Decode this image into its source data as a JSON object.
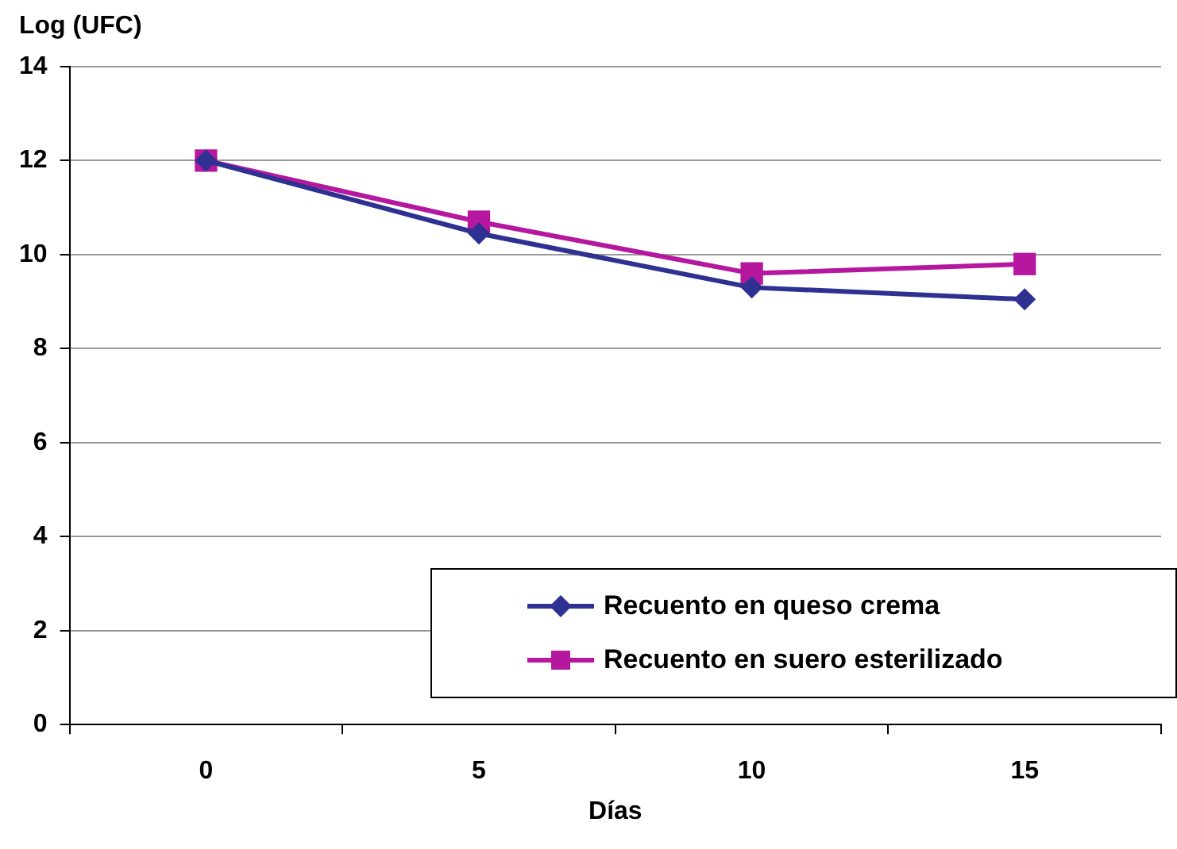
{
  "chart_data": {
    "type": "line",
    "xlabel": "Días",
    "ylabel": "Log (UFC)",
    "categories": [
      "0",
      "5",
      "10",
      "15"
    ],
    "series": [
      {
        "name": "Recuento en queso crema",
        "color": "#2e3192",
        "marker": "diamond",
        "values": [
          12,
          10.45,
          9.3,
          9.05
        ]
      },
      {
        "name": "Recuento en suero esterilizado",
        "color": "#b5179e",
        "marker": "square",
        "values": [
          12,
          10.7,
          9.6,
          9.8
        ]
      }
    ],
    "ylim": [
      0,
      14
    ],
    "yticks": [
      0,
      2,
      4,
      6,
      8,
      10,
      12,
      14
    ],
    "grid": "y",
    "legend": "bottom right"
  }
}
